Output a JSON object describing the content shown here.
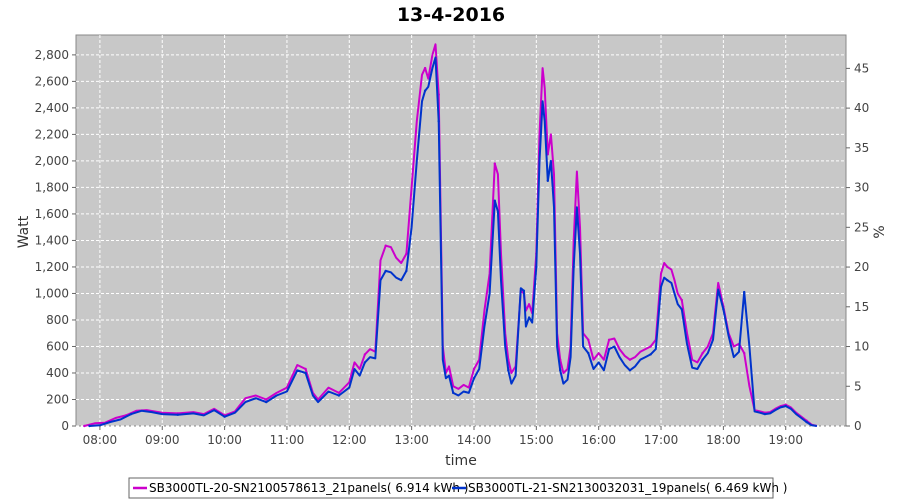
{
  "chart_data": {
    "type": "line",
    "title": "13-4-2016",
    "xlabel": "time",
    "ylabel": "Watt",
    "y2label": "%",
    "xlim": [
      "07:37",
      "19:58"
    ],
    "ylim": [
      0,
      2950
    ],
    "y2lim": [
      0,
      49.2
    ],
    "x_ticks": [
      "08:00",
      "09:00",
      "10:00",
      "11:00",
      "12:00",
      "13:00",
      "14:00",
      "15:00",
      "16:00",
      "17:00",
      "18:00",
      "19:00"
    ],
    "y_ticks": [
      0,
      200,
      400,
      600,
      800,
      1000,
      1200,
      1400,
      1600,
      1800,
      2000,
      2200,
      2400,
      2600,
      2800
    ],
    "y_tick_labels": [
      "0",
      "200",
      "400",
      "600",
      "800",
      "1,000",
      "1,200",
      "1,400",
      "1,600",
      "1,800",
      "2,000",
      "2,200",
      "2,400",
      "2,600",
      "2,800"
    ],
    "y2_ticks": [
      "0",
      "5",
      "10",
      "15",
      "20",
      "25",
      "30",
      "35",
      "40",
      "45"
    ],
    "grid": true,
    "legend_position": "bottom",
    "colors": {
      "plot_bg": "#c8c8c8",
      "grid": "#ffffff",
      "series_1": "#cc00cc",
      "series_2": "#0033cc"
    },
    "series": [
      {
        "name": "SB3000TL-20-SN2100578613_21panels( 6.914 kWh )",
        "color": "#cc00cc",
        "points": [
          [
            "07:45",
            0
          ],
          [
            "07:55",
            20
          ],
          [
            "08:05",
            25
          ],
          [
            "08:15",
            60
          ],
          [
            "08:25",
            80
          ],
          [
            "08:35",
            115
          ],
          [
            "08:45",
            120
          ],
          [
            "09:00",
            100
          ],
          [
            "09:15",
            95
          ],
          [
            "09:30",
            105
          ],
          [
            "09:40",
            90
          ],
          [
            "09:50",
            130
          ],
          [
            "10:00",
            80
          ],
          [
            "10:10",
            110
          ],
          [
            "10:20",
            210
          ],
          [
            "10:30",
            230
          ],
          [
            "10:40",
            200
          ],
          [
            "10:50",
            250
          ],
          [
            "11:00",
            290
          ],
          [
            "11:10",
            460
          ],
          [
            "11:18",
            430
          ],
          [
            "11:25",
            250
          ],
          [
            "11:30",
            200
          ],
          [
            "11:40",
            290
          ],
          [
            "11:50",
            250
          ],
          [
            "12:00",
            330
          ],
          [
            "12:05",
            480
          ],
          [
            "12:10",
            430
          ],
          [
            "12:15",
            540
          ],
          [
            "12:20",
            580
          ],
          [
            "12:25",
            560
          ],
          [
            "12:30",
            1250
          ],
          [
            "12:35",
            1360
          ],
          [
            "12:40",
            1350
          ],
          [
            "12:45",
            1270
          ],
          [
            "12:50",
            1230
          ],
          [
            "12:55",
            1300
          ],
          [
            "13:00",
            1800
          ],
          [
            "13:05",
            2300
          ],
          [
            "13:10",
            2650
          ],
          [
            "13:13",
            2700
          ],
          [
            "13:16",
            2620
          ],
          [
            "13:20",
            2800
          ],
          [
            "13:23",
            2880
          ],
          [
            "13:26",
            2500
          ],
          [
            "13:30",
            600
          ],
          [
            "13:33",
            400
          ],
          [
            "13:36",
            450
          ],
          [
            "13:40",
            300
          ],
          [
            "13:45",
            280
          ],
          [
            "13:50",
            310
          ],
          [
            "13:55",
            290
          ],
          [
            "14:00",
            430
          ],
          [
            "14:05",
            500
          ],
          [
            "14:10",
            870
          ],
          [
            "14:15",
            1150
          ],
          [
            "14:20",
            1980
          ],
          [
            "14:23",
            1900
          ],
          [
            "14:26",
            1300
          ],
          [
            "14:30",
            700
          ],
          [
            "14:33",
            500
          ],
          [
            "14:36",
            400
          ],
          [
            "14:40",
            450
          ],
          [
            "14:45",
            1020
          ],
          [
            "14:48",
            1000
          ],
          [
            "14:50",
            870
          ],
          [
            "14:53",
            920
          ],
          [
            "14:56",
            850
          ],
          [
            "15:00",
            1300
          ],
          [
            "15:03",
            2200
          ],
          [
            "15:06",
            2700
          ],
          [
            "15:08",
            2550
          ],
          [
            "15:11",
            2050
          ],
          [
            "15:14",
            2200
          ],
          [
            "15:17",
            1900
          ],
          [
            "15:20",
            700
          ],
          [
            "15:23",
            500
          ],
          [
            "15:26",
            400
          ],
          [
            "15:30",
            430
          ],
          [
            "15:33",
            600
          ],
          [
            "15:36",
            1400
          ],
          [
            "15:39",
            1920
          ],
          [
            "15:42",
            1500
          ],
          [
            "15:45",
            700
          ],
          [
            "15:50",
            650
          ],
          [
            "15:55",
            500
          ],
          [
            "16:00",
            550
          ],
          [
            "16:05",
            500
          ],
          [
            "16:10",
            650
          ],
          [
            "16:15",
            660
          ],
          [
            "16:20",
            580
          ],
          [
            "16:25",
            530
          ],
          [
            "16:30",
            500
          ],
          [
            "16:35",
            520
          ],
          [
            "16:40",
            560
          ],
          [
            "16:45",
            580
          ],
          [
            "16:50",
            600
          ],
          [
            "16:55",
            650
          ],
          [
            "17:00",
            1150
          ],
          [
            "17:03",
            1230
          ],
          [
            "17:06",
            1200
          ],
          [
            "17:10",
            1180
          ],
          [
            "17:13",
            1100
          ],
          [
            "17:16",
            1000
          ],
          [
            "17:20",
            950
          ],
          [
            "17:25",
            700
          ],
          [
            "17:30",
            500
          ],
          [
            "17:35",
            480
          ],
          [
            "17:40",
            550
          ],
          [
            "17:45",
            600
          ],
          [
            "17:50",
            700
          ],
          [
            "17:55",
            1080
          ],
          [
            "18:00",
            900
          ],
          [
            "18:05",
            700
          ],
          [
            "18:10",
            600
          ],
          [
            "18:15",
            620
          ],
          [
            "18:20",
            550
          ],
          [
            "18:25",
            300
          ],
          [
            "18:30",
            120
          ],
          [
            "18:35",
            110
          ],
          [
            "18:40",
            100
          ],
          [
            "18:45",
            105
          ],
          [
            "18:50",
            130
          ],
          [
            "18:55",
            150
          ],
          [
            "19:00",
            160
          ],
          [
            "19:05",
            140
          ],
          [
            "19:10",
            100
          ],
          [
            "19:15",
            70
          ],
          [
            "19:20",
            40
          ],
          [
            "19:25",
            10
          ],
          [
            "19:30",
            0
          ]
        ]
      },
      {
        "name": "SB3000TL-21-SN2130032031_19panels( 6.469 kWh )",
        "color": "#0033cc",
        "points": [
          [
            "07:50",
            0
          ],
          [
            "08:00",
            5
          ],
          [
            "08:10",
            30
          ],
          [
            "08:20",
            50
          ],
          [
            "08:30",
            90
          ],
          [
            "08:40",
            115
          ],
          [
            "08:50",
            105
          ],
          [
            "09:00",
            90
          ],
          [
            "09:15",
            85
          ],
          [
            "09:30",
            95
          ],
          [
            "09:40",
            80
          ],
          [
            "09:50",
            120
          ],
          [
            "10:00",
            70
          ],
          [
            "10:10",
            100
          ],
          [
            "10:20",
            180
          ],
          [
            "10:30",
            210
          ],
          [
            "10:40",
            180
          ],
          [
            "10:50",
            230
          ],
          [
            "11:00",
            260
          ],
          [
            "11:10",
            420
          ],
          [
            "11:18",
            400
          ],
          [
            "11:25",
            230
          ],
          [
            "11:30",
            180
          ],
          [
            "11:40",
            260
          ],
          [
            "11:50",
            230
          ],
          [
            "12:00",
            290
          ],
          [
            "12:05",
            430
          ],
          [
            "12:10",
            380
          ],
          [
            "12:15",
            480
          ],
          [
            "12:20",
            520
          ],
          [
            "12:25",
            510
          ],
          [
            "12:30",
            1100
          ],
          [
            "12:35",
            1170
          ],
          [
            "12:40",
            1160
          ],
          [
            "12:45",
            1120
          ],
          [
            "12:50",
            1100
          ],
          [
            "12:55",
            1170
          ],
          [
            "13:00",
            1500
          ],
          [
            "13:05",
            2000
          ],
          [
            "13:10",
            2450
          ],
          [
            "13:13",
            2530
          ],
          [
            "13:16",
            2560
          ],
          [
            "13:20",
            2700
          ],
          [
            "13:23",
            2780
          ],
          [
            "13:26",
            2300
          ],
          [
            "13:30",
            500
          ],
          [
            "13:33",
            360
          ],
          [
            "13:36",
            380
          ],
          [
            "13:40",
            250
          ],
          [
            "13:45",
            230
          ],
          [
            "13:50",
            260
          ],
          [
            "13:55",
            250
          ],
          [
            "14:00",
            360
          ],
          [
            "14:05",
            430
          ],
          [
            "14:10",
            750
          ],
          [
            "14:15",
            1000
          ],
          [
            "14:20",
            1700
          ],
          [
            "14:23",
            1620
          ],
          [
            "14:26",
            1100
          ],
          [
            "14:30",
            600
          ],
          [
            "14:33",
            420
          ],
          [
            "14:36",
            320
          ],
          [
            "14:40",
            380
          ],
          [
            "14:45",
            1040
          ],
          [
            "14:48",
            1020
          ],
          [
            "14:50",
            750
          ],
          [
            "14:53",
            820
          ],
          [
            "14:56",
            780
          ],
          [
            "15:00",
            1200
          ],
          [
            "15:03",
            2000
          ],
          [
            "15:06",
            2450
          ],
          [
            "15:08",
            2300
          ],
          [
            "15:11",
            1850
          ],
          [
            "15:14",
            2000
          ],
          [
            "15:17",
            1650
          ],
          [
            "15:20",
            600
          ],
          [
            "15:23",
            420
          ],
          [
            "15:26",
            320
          ],
          [
            "15:30",
            350
          ],
          [
            "15:33",
            520
          ],
          [
            "15:36",
            1200
          ],
          [
            "15:39",
            1650
          ],
          [
            "15:42",
            1300
          ],
          [
            "15:45",
            600
          ],
          [
            "15:50",
            550
          ],
          [
            "15:55",
            430
          ],
          [
            "16:00",
            480
          ],
          [
            "16:05",
            420
          ],
          [
            "16:10",
            580
          ],
          [
            "16:15",
            600
          ],
          [
            "16:20",
            520
          ],
          [
            "16:25",
            460
          ],
          [
            "16:30",
            420
          ],
          [
            "16:35",
            450
          ],
          [
            "16:40",
            500
          ],
          [
            "16:45",
            520
          ],
          [
            "16:50",
            540
          ],
          [
            "16:55",
            580
          ],
          [
            "17:00",
            1050
          ],
          [
            "17:03",
            1120
          ],
          [
            "17:06",
            1100
          ],
          [
            "17:10",
            1080
          ],
          [
            "17:13",
            1000
          ],
          [
            "17:16",
            920
          ],
          [
            "17:20",
            880
          ],
          [
            "17:25",
            620
          ],
          [
            "17:30",
            440
          ],
          [
            "17:35",
            430
          ],
          [
            "17:40",
            500
          ],
          [
            "17:45",
            550
          ],
          [
            "17:50",
            650
          ],
          [
            "17:55",
            1030
          ],
          [
            "18:00",
            880
          ],
          [
            "18:05",
            680
          ],
          [
            "18:10",
            520
          ],
          [
            "18:15",
            560
          ],
          [
            "18:20",
            1010
          ],
          [
            "18:25",
            600
          ],
          [
            "18:30",
            110
          ],
          [
            "18:35",
            100
          ],
          [
            "18:40",
            90
          ],
          [
            "18:45",
            95
          ],
          [
            "18:50",
            120
          ],
          [
            "18:55",
            140
          ],
          [
            "19:00",
            150
          ],
          [
            "19:05",
            130
          ],
          [
            "19:10",
            90
          ],
          [
            "19:15",
            60
          ],
          [
            "19:20",
            30
          ],
          [
            "19:25",
            5
          ],
          [
            "19:30",
            0
          ]
        ]
      }
    ]
  }
}
